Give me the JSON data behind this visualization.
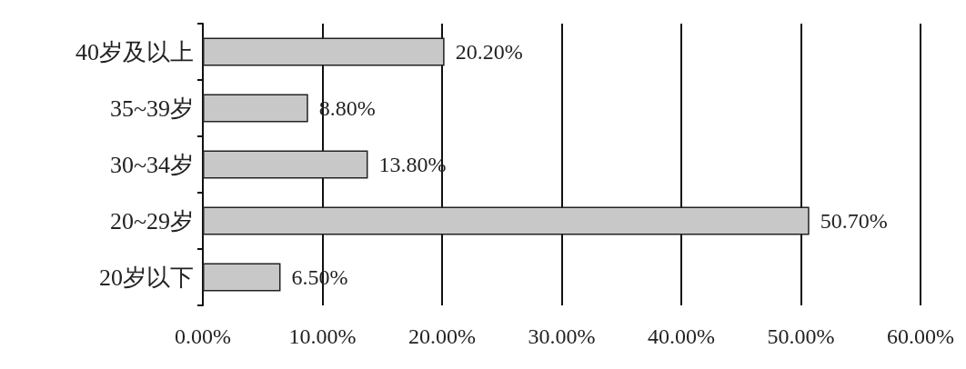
{
  "chart_data": {
    "type": "bar",
    "orientation": "horizontal",
    "categories": [
      "40岁及以上",
      "35~39岁",
      "30~34岁",
      "20~29岁",
      "20岁以下"
    ],
    "values": [
      20.2,
      8.8,
      13.8,
      50.7,
      6.5
    ],
    "value_labels": [
      "20.20%",
      "8.80%",
      "13.80%",
      "50.70%",
      "6.50%"
    ],
    "color": "#c8c8c8",
    "xlim": [
      0,
      60
    ],
    "xticks": [
      {
        "value": 0,
        "label": "0.00%"
      },
      {
        "value": 10,
        "label": "10.00%"
      },
      {
        "value": 20,
        "label": "20.00%"
      },
      {
        "value": 30,
        "label": "30.00%"
      },
      {
        "value": 40,
        "label": "40.00%"
      },
      {
        "value": 50,
        "label": "50.00%"
      },
      {
        "value": 60,
        "label": "60.00%"
      }
    ],
    "grid": "x"
  }
}
